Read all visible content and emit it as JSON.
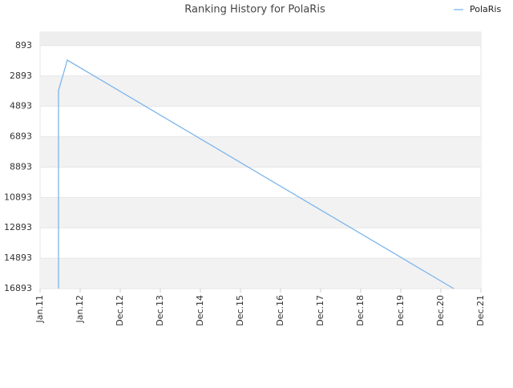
{
  "chart_data": {
    "type": "line",
    "title": "Ranking History for PolaRis",
    "x": [
      0.46,
      0.46,
      0.68,
      10.32
    ],
    "series": [
      {
        "name": "PolaRis",
        "color": "#7cb5ec",
        "values": [
          16893,
          3854,
          1848,
          16893
        ]
      }
    ],
    "xlim": [
      0,
      11
    ],
    "xticks": [
      {
        "value": 0,
        "label": "Jan.11"
      },
      {
        "value": 1,
        "label": "Jan.12"
      },
      {
        "value": 2,
        "label": "Dec.12"
      },
      {
        "value": 3,
        "label": "Dec.13"
      },
      {
        "value": 4,
        "label": "Dec.14"
      },
      {
        "value": 5,
        "label": "Dec.15"
      },
      {
        "value": 6,
        "label": "Dec.16"
      },
      {
        "value": 7,
        "label": "Dec.17"
      },
      {
        "value": 8,
        "label": "Dec.18"
      },
      {
        "value": 9,
        "label": "Dec.19"
      },
      {
        "value": 10,
        "label": "Dec.20"
      },
      {
        "value": 11,
        "label": "Dec.21"
      }
    ],
    "ylim": [
      0,
      16893
    ],
    "y_inverted": true,
    "yticks": [
      893,
      2893,
      4893,
      6893,
      8893,
      10893,
      12893,
      14893,
      16893
    ],
    "grid": true,
    "legend": "top-right"
  }
}
